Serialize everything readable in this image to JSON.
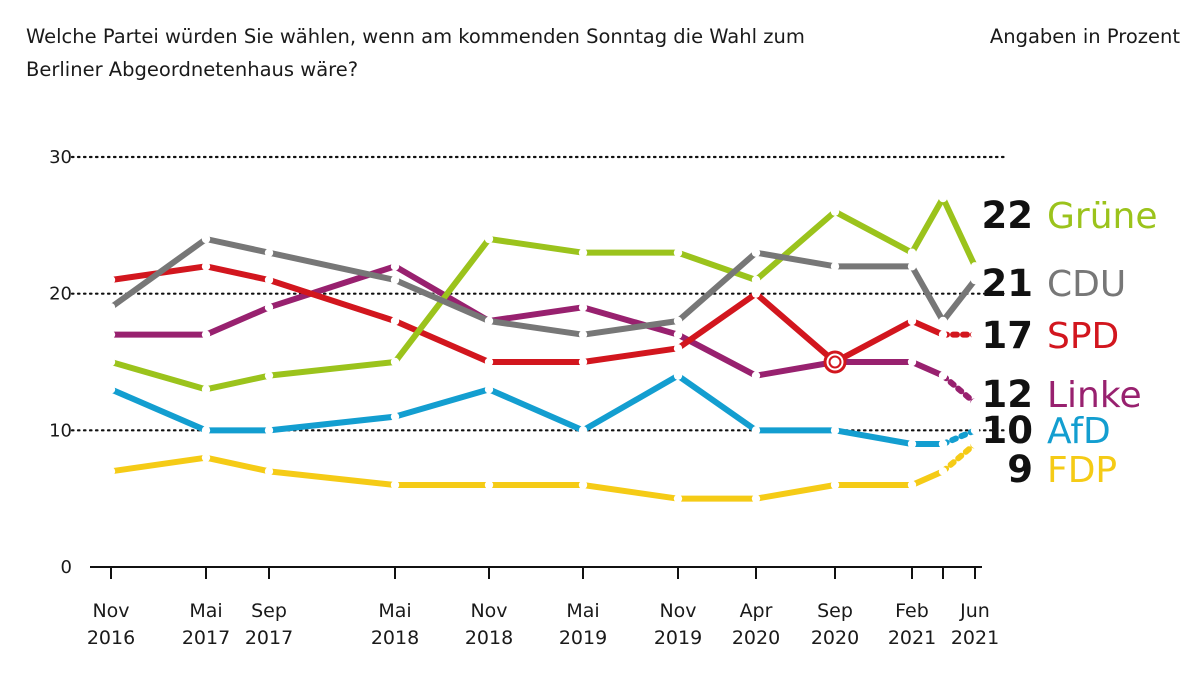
{
  "header": {
    "subtitle": "Welche Partei würden Sie wählen, wenn am kommenden Sonntag die Wahl zum Berliner Abgeordnetenhaus wäre?",
    "unit_note": "Angaben in Prozent"
  },
  "chart_data": {
    "type": "line",
    "title": "",
    "xlabel": "",
    "ylabel": "",
    "ylim": [
      0,
      30
    ],
    "yticks": [
      0,
      10,
      20,
      30
    ],
    "grid": "dotted horizontal at 10, 20, 30",
    "x": [
      "2016-11",
      "2017-05",
      "2017-09",
      "2018-05",
      "2018-11",
      "2019-05",
      "2019-11",
      "2020-04",
      "2020-09",
      "2021-02",
      "2021-04",
      "2021-06"
    ],
    "x_tick_labels": [
      {
        "month": "Nov",
        "year": "2016"
      },
      {
        "month": "Mai",
        "year": "2017"
      },
      {
        "month": "Sep",
        "year": "2017"
      },
      {
        "month": "Mai",
        "year": "2018"
      },
      {
        "month": "Nov",
        "year": "2018"
      },
      {
        "month": "Mai",
        "year": "2019"
      },
      {
        "month": "Nov",
        "year": "2019"
      },
      {
        "month": "Apr",
        "year": "2020"
      },
      {
        "month": "Sep",
        "year": "2020"
      },
      {
        "month": "Feb",
        "year": "2021"
      },
      {
        "month": "",
        "year": ""
      },
      {
        "month": "Jun",
        "year": "2021"
      }
    ],
    "series": [
      {
        "name": "CDU",
        "color": "#777777",
        "final_label": "21",
        "values": [
          19,
          24,
          23,
          21,
          18,
          17,
          18,
          23,
          22,
          22,
          18,
          21
        ]
      },
      {
        "name": "Grüne",
        "color": "#9bc31c",
        "final_label": "22",
        "values": [
          15,
          13,
          14,
          15,
          24,
          23,
          23,
          21,
          26,
          23,
          27,
          22
        ]
      },
      {
        "name": "SPD",
        "color": "#d2161e",
        "final_label": "17",
        "values": [
          21,
          22,
          21,
          18,
          15,
          15,
          16,
          20,
          15,
          18,
          17,
          17
        ]
      },
      {
        "name": "Linke",
        "color": "#98216f",
        "final_label": "12",
        "values": [
          17,
          17,
          19,
          22,
          18,
          19,
          17,
          14,
          15,
          15,
          14,
          12
        ]
      },
      {
        "name": "AfD",
        "color": "#139ed0",
        "final_label": "10",
        "values": [
          13,
          10,
          10,
          11,
          13,
          10,
          14,
          10,
          10,
          9,
          9,
          10
        ]
      },
      {
        "name": "FDP",
        "color": "#f5cb16",
        "final_label": "9",
        "values": [
          7,
          8,
          7,
          6,
          6,
          6,
          5,
          5,
          6,
          6,
          7,
          9
        ]
      }
    ],
    "dashed_last_segments": [
      "SPD",
      "Linke",
      "AfD",
      "FDP"
    ],
    "annotation": "SPD marker circled at Sep 2020"
  }
}
